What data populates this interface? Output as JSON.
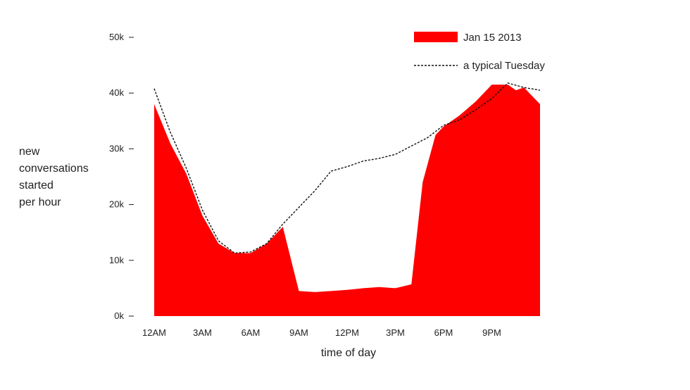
{
  "chart_data": {
    "type": "area",
    "xlabel": "time of day",
    "ylabel_lines": [
      "new",
      "conversations",
      "started",
      "per hour"
    ],
    "x_ticks": [
      "12AM",
      "3AM",
      "6AM",
      "9AM",
      "12PM",
      "3PM",
      "6PM",
      "9PM"
    ],
    "y_ticks": [
      "0k",
      "10k",
      "20k",
      "30k",
      "40k",
      "50k"
    ],
    "x_range_hours": [
      0,
      24
    ],
    "ylim": [
      0,
      50000
    ],
    "grid": false,
    "legend_position": "top-right",
    "series": [
      {
        "name": "Jan 15 2013",
        "style": "filled-area",
        "color": "#ff0000",
        "x_hours": [
          0,
          1,
          2,
          3,
          4,
          5,
          6,
          7,
          8,
          9,
          10,
          11,
          12,
          13,
          14,
          15,
          16,
          16.7,
          17.5,
          18,
          19,
          20,
          21,
          22,
          22.5,
          23,
          24
        ],
        "values": [
          38000,
          31000,
          25500,
          18000,
          13000,
          11300,
          11300,
          13000,
          16000,
          4500,
          4300,
          4500,
          4700,
          5000,
          5200,
          5000,
          5700,
          24000,
          32500,
          34000,
          36000,
          38500,
          41500,
          41500,
          40500,
          41000,
          38000
        ]
      },
      {
        "name": "a typical Tuesday",
        "style": "dashed-line",
        "color": "#111111",
        "x_hours": [
          0,
          1,
          2,
          3,
          4,
          5,
          6,
          7,
          8,
          9,
          10,
          11,
          12,
          13,
          14,
          15,
          16,
          17,
          18,
          19,
          20,
          21,
          22,
          23,
          24
        ],
        "values": [
          40800,
          33000,
          26500,
          19000,
          13500,
          11300,
          11500,
          13000,
          16500,
          19500,
          22500,
          26000,
          26800,
          27800,
          28300,
          29000,
          30500,
          32000,
          34200,
          35200,
          37000,
          39000,
          41800,
          41000,
          40500
        ]
      }
    ]
  }
}
